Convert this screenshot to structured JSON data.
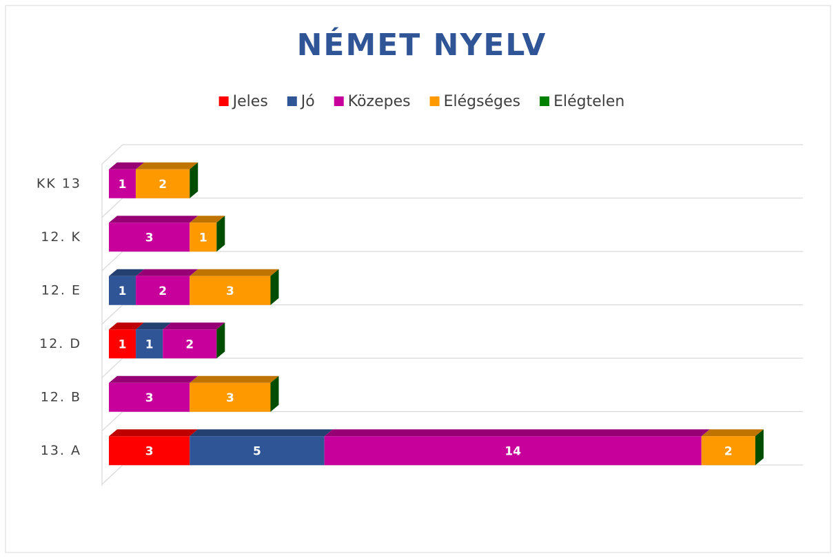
{
  "chart_data": {
    "type": "bar",
    "orientation": "horizontal",
    "stacked": true,
    "title": "NÉMET  NYELV",
    "categories": [
      "KK 13",
      "12. K",
      "12. E",
      "12. D",
      "12. B",
      "13. A"
    ],
    "series": [
      {
        "name": "Jeles",
        "color": "#ff0000",
        "values": [
          0,
          0,
          0,
          1,
          0,
          3
        ]
      },
      {
        "name": "Jó",
        "color": "#2f5597",
        "values": [
          null,
          null,
          1,
          1,
          null,
          5
        ]
      },
      {
        "name": "Közepes",
        "color": "#c8009b",
        "values": [
          1,
          3,
          2,
          2,
          3,
          14
        ]
      },
      {
        "name": "Elégséges",
        "color": "#ff9900",
        "values": [
          2,
          1,
          3,
          null,
          3,
          2
        ]
      },
      {
        "name": "Elégtelen",
        "color": "#008000",
        "values": [
          0,
          0,
          0,
          0,
          0,
          0
        ]
      }
    ],
    "xlim": [
      0,
      25
    ],
    "legend": "top"
  }
}
